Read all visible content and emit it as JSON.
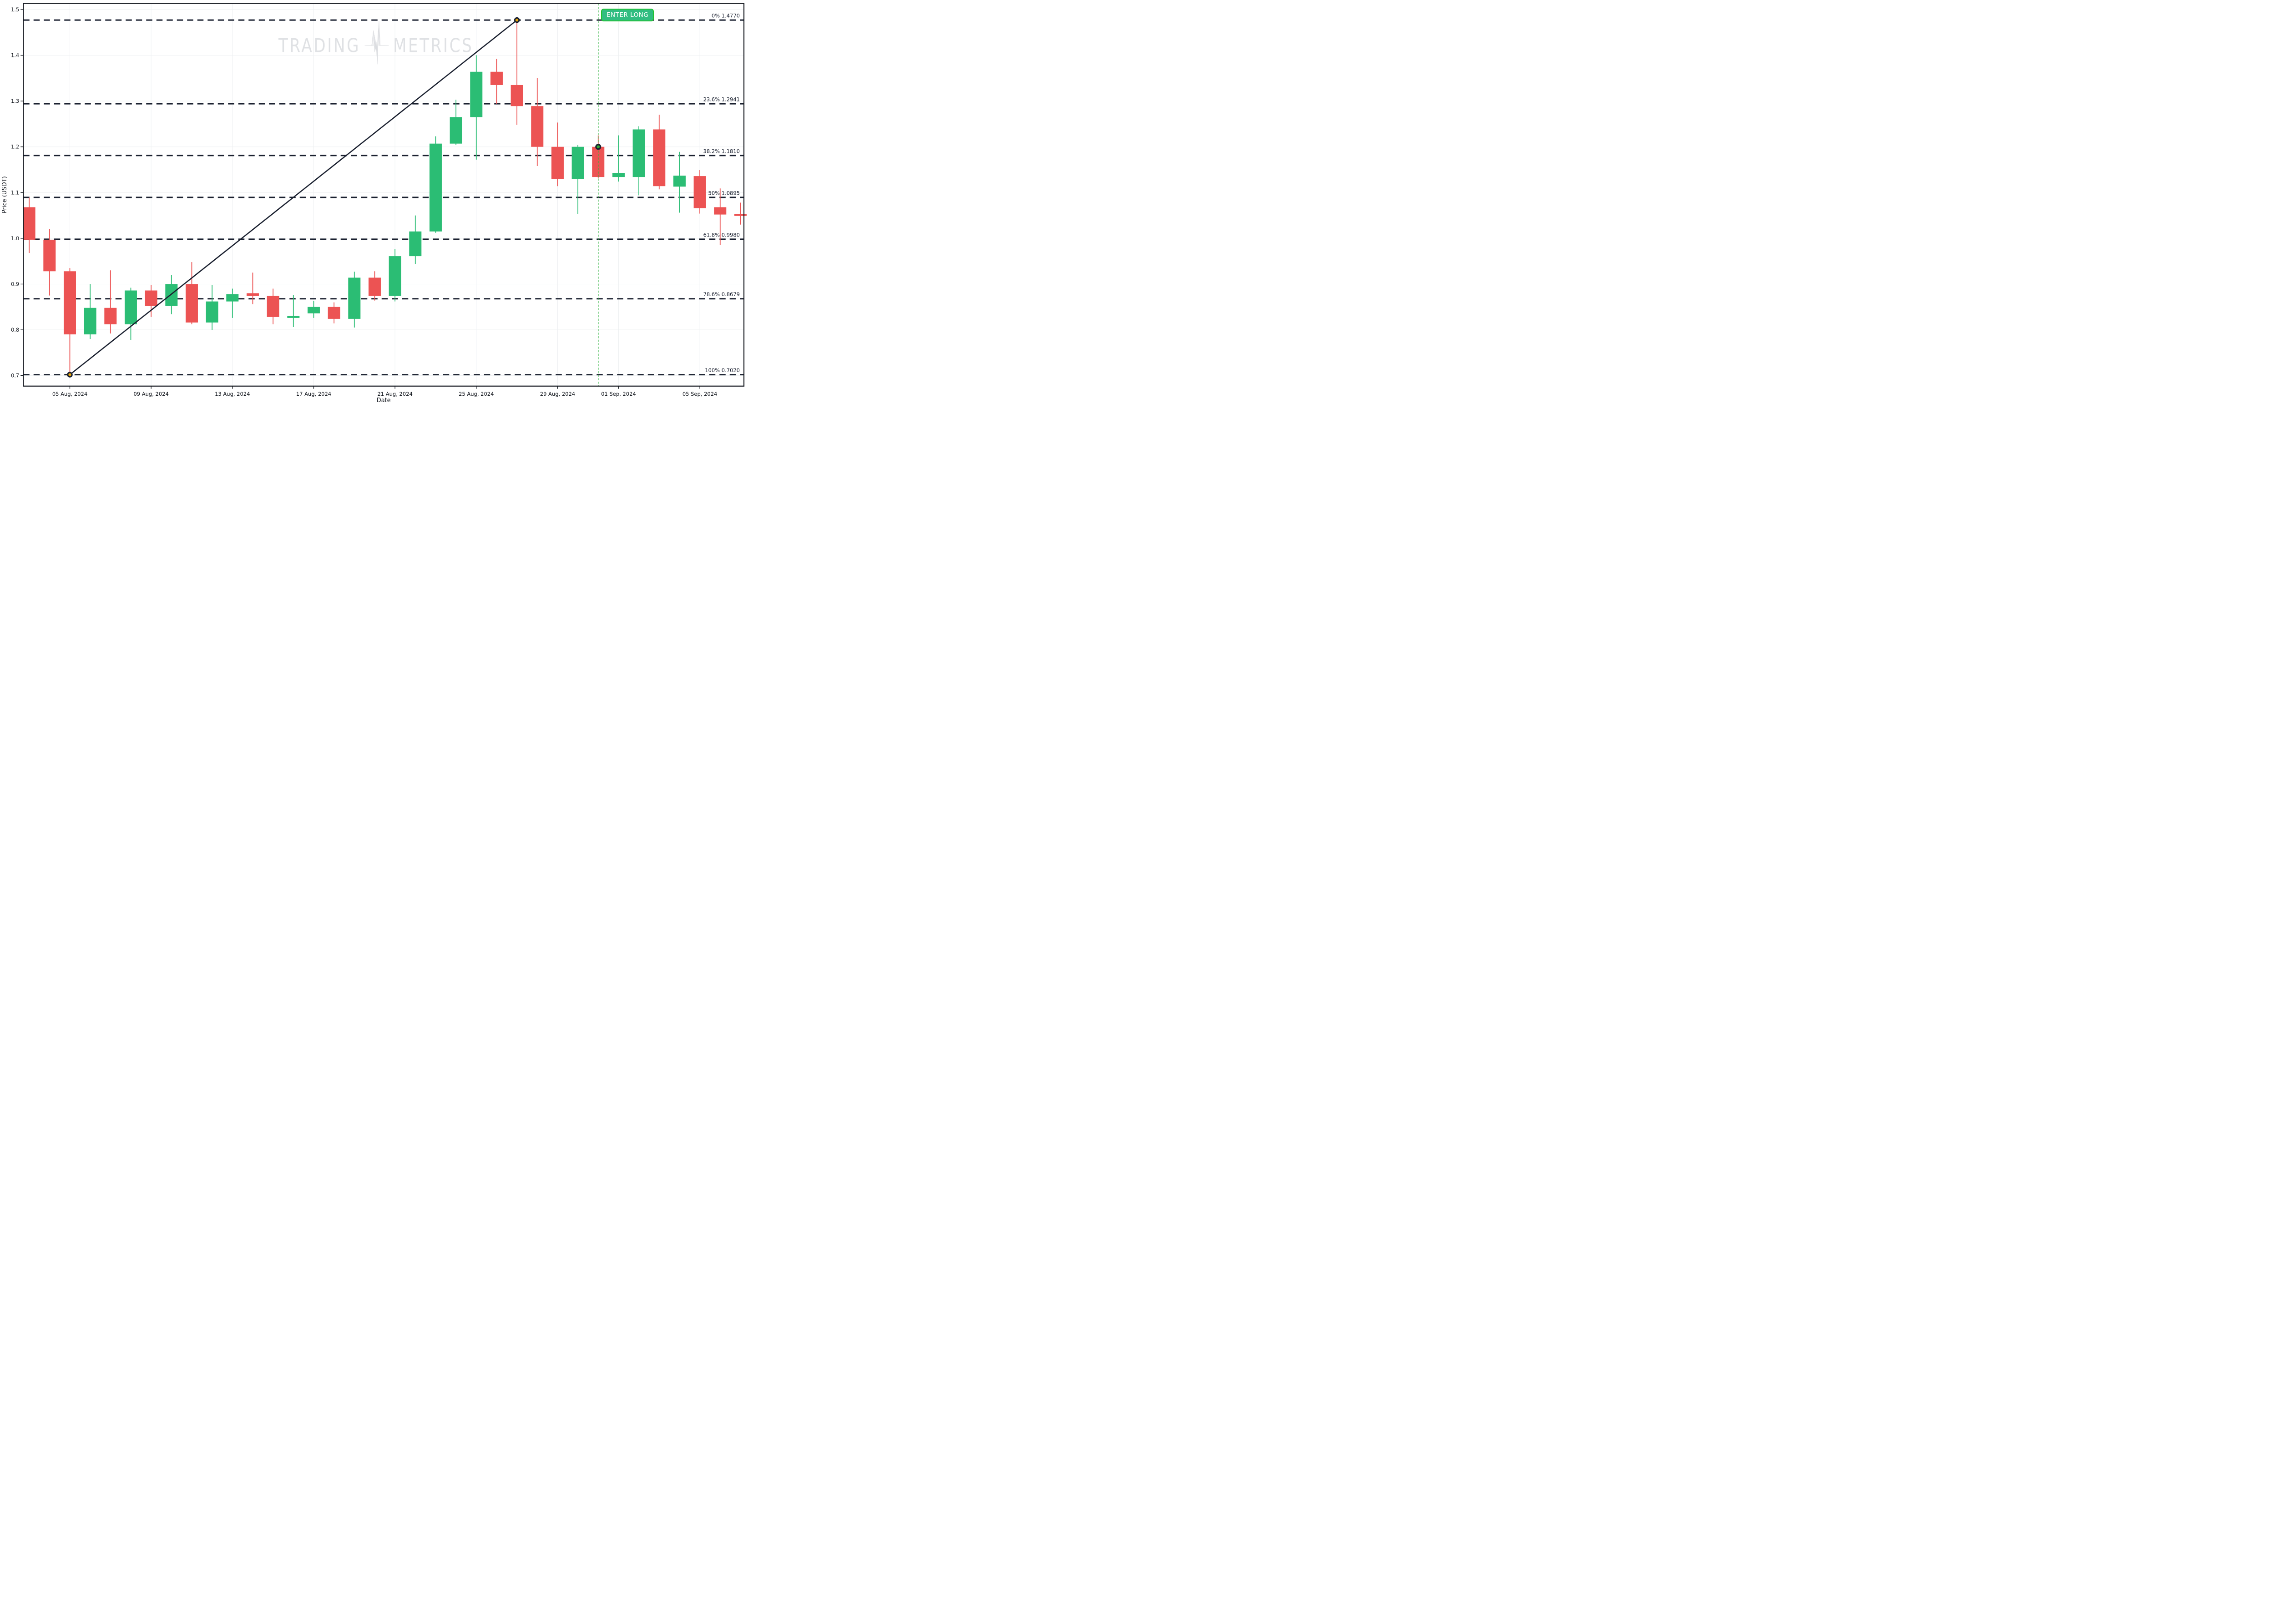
{
  "watermark": {
    "part1": "TRADING",
    "part2": "METRICS"
  },
  "annotation": {
    "label": "ENTER LONG"
  },
  "axes": {
    "x_title": "Date",
    "y_title": "Price (USDT)",
    "y_ticks": [
      "0.7",
      "0.8",
      "0.9",
      "1.0",
      "1.1",
      "1.2",
      "1.3",
      "1.4",
      "1.5"
    ],
    "x_ticks": [
      {
        "index": 2,
        "label": "05 Aug, 2024"
      },
      {
        "index": 6,
        "label": "09 Aug, 2024"
      },
      {
        "index": 10,
        "label": "13 Aug, 2024"
      },
      {
        "index": 14,
        "label": "17 Aug, 2024"
      },
      {
        "index": 18,
        "label": "21 Aug, 2024"
      },
      {
        "index": 22,
        "label": "25 Aug, 2024"
      },
      {
        "index": 26,
        "label": "29 Aug, 2024"
      },
      {
        "index": 29,
        "label": "01 Sep, 2024"
      },
      {
        "index": 33,
        "label": "05 Sep, 2024"
      }
    ]
  },
  "colors": {
    "up": "#2BBD74",
    "down": "#EC5353",
    "fib_line": "#1B2130",
    "trend_line": "#1B2130",
    "entry_line": "#2CB23C",
    "entry_dot": "#2FAB33",
    "swing_marker": "#E8A80C",
    "marker_ring": "#1B2130",
    "badge_fill": "#31BD81",
    "badge_border": "#1FC131",
    "grid": "#EEF0F2",
    "axis": "#14181F",
    "text": "#1B2130",
    "watermark": "#DFE1E4"
  },
  "chart_data": {
    "type": "candlestick",
    "title": "",
    "xlabel": "Date",
    "ylabel": "Price (USDT)",
    "ylim": [
      0.677,
      1.5134
    ],
    "grid": true,
    "fib_levels": [
      {
        "pct": "0%",
        "value": "1.4770",
        "price": 1.477
      },
      {
        "pct": "23.6%",
        "value": "1.2941",
        "price": 1.2941
      },
      {
        "pct": "38.2%",
        "value": "1.1810",
        "price": 1.181
      },
      {
        "pct": "50%",
        "value": "1.0895",
        "price": 1.0895
      },
      {
        "pct": "61.8%",
        "value": "0.9980",
        "price": 0.998
      },
      {
        "pct": "78.6%",
        "value": "0.8679",
        "price": 0.8679
      },
      {
        "pct": "100%",
        "value": "0.7020",
        "price": 0.702
      }
    ],
    "markers": {
      "swing_low": {
        "index": 2,
        "price": 0.702,
        "date": "05 Aug, 2024"
      },
      "swing_high": {
        "index": 24,
        "price": 1.477,
        "date": "27 Aug, 2024"
      },
      "entry": {
        "index": 28,
        "price": 1.2,
        "date": "31 Aug, 2024"
      }
    },
    "candles": [
      {
        "date": "03 Aug, 2024",
        "o": 1.068,
        "h": 1.089,
        "l": 0.968,
        "c": 0.997
      },
      {
        "date": "04 Aug, 2024",
        "o": 0.997,
        "h": 1.02,
        "l": 0.875,
        "c": 0.928
      },
      {
        "date": "05 Aug, 2024",
        "o": 0.928,
        "h": 0.935,
        "l": 0.702,
        "c": 0.79
      },
      {
        "date": "06 Aug, 2024",
        "o": 0.79,
        "h": 0.9,
        "l": 0.78,
        "c": 0.848
      },
      {
        "date": "07 Aug, 2024",
        "o": 0.848,
        "h": 0.93,
        "l": 0.792,
        "c": 0.812
      },
      {
        "date": "08 Aug, 2024",
        "o": 0.812,
        "h": 0.892,
        "l": 0.778,
        "c": 0.886
      },
      {
        "date": "09 Aug, 2024",
        "o": 0.886,
        "h": 0.898,
        "l": 0.828,
        "c": 0.852
      },
      {
        "date": "10 Aug, 2024",
        "o": 0.852,
        "h": 0.92,
        "l": 0.834,
        "c": 0.9
      },
      {
        "date": "11 Aug, 2024",
        "o": 0.9,
        "h": 0.948,
        "l": 0.812,
        "c": 0.816
      },
      {
        "date": "12 Aug, 2024",
        "o": 0.816,
        "h": 0.898,
        "l": 0.8,
        "c": 0.862
      },
      {
        "date": "13 Aug, 2024",
        "o": 0.862,
        "h": 0.89,
        "l": 0.826,
        "c": 0.878
      },
      {
        "date": "14 Aug, 2024",
        "o": 0.88,
        "h": 0.925,
        "l": 0.856,
        "c": 0.874
      },
      {
        "date": "15 Aug, 2024",
        "o": 0.874,
        "h": 0.89,
        "l": 0.812,
        "c": 0.828
      },
      {
        "date": "16 Aug, 2024",
        "o": 0.826,
        "h": 0.876,
        "l": 0.806,
        "c": 0.83
      },
      {
        "date": "17 Aug, 2024",
        "o": 0.836,
        "h": 0.863,
        "l": 0.826,
        "c": 0.85
      },
      {
        "date": "18 Aug, 2024",
        "o": 0.85,
        "h": 0.86,
        "l": 0.814,
        "c": 0.824
      },
      {
        "date": "19 Aug, 2024",
        "o": 0.824,
        "h": 0.927,
        "l": 0.805,
        "c": 0.914
      },
      {
        "date": "20 Aug, 2024",
        "o": 0.914,
        "h": 0.928,
        "l": 0.864,
        "c": 0.874
      },
      {
        "date": "21 Aug, 2024",
        "o": 0.874,
        "h": 0.977,
        "l": 0.862,
        "c": 0.961
      },
      {
        "date": "22 Aug, 2024",
        "o": 0.961,
        "h": 1.05,
        "l": 0.944,
        "c": 1.015
      },
      {
        "date": "23 Aug, 2024",
        "o": 1.015,
        "h": 1.223,
        "l": 1.012,
        "c": 1.207
      },
      {
        "date": "24 Aug, 2024",
        "o": 1.207,
        "h": 1.303,
        "l": 1.204,
        "c": 1.265
      },
      {
        "date": "25 Aug, 2024",
        "o": 1.265,
        "h": 1.4,
        "l": 1.172,
        "c": 1.364
      },
      {
        "date": "26 Aug, 2024",
        "o": 1.364,
        "h": 1.392,
        "l": 1.294,
        "c": 1.335
      },
      {
        "date": "27 Aug, 2024",
        "o": 1.335,
        "h": 1.477,
        "l": 1.248,
        "c": 1.289
      },
      {
        "date": "28 Aug, 2024",
        "o": 1.289,
        "h": 1.35,
        "l": 1.158,
        "c": 1.2
      },
      {
        "date": "29 Aug, 2024",
        "o": 1.2,
        "h": 1.253,
        "l": 1.114,
        "c": 1.13
      },
      {
        "date": "30 Aug, 2024",
        "o": 1.13,
        "h": 1.204,
        "l": 1.053,
        "c": 1.2
      },
      {
        "date": "31 Aug, 2024",
        "o": 1.2,
        "h": 1.225,
        "l": 1.131,
        "c": 1.134
      },
      {
        "date": "01 Sep, 2024",
        "o": 1.134,
        "h": 1.225,
        "l": 1.124,
        "c": 1.143
      },
      {
        "date": "02 Sep, 2024",
        "o": 1.134,
        "h": 1.245,
        "l": 1.094,
        "c": 1.238
      },
      {
        "date": "03 Sep, 2024",
        "o": 1.238,
        "h": 1.27,
        "l": 1.107,
        "c": 1.114
      },
      {
        "date": "04 Sep, 2024",
        "o": 1.113,
        "h": 1.189,
        "l": 1.056,
        "c": 1.137
      },
      {
        "date": "05 Sep, 2024",
        "o": 1.136,
        "h": 1.149,
        "l": 1.054,
        "c": 1.066
      },
      {
        "date": "06 Sep, 2024",
        "o": 1.068,
        "h": 1.109,
        "l": 0.985,
        "c": 1.052
      },
      {
        "date": "07 Sep, 2024",
        "o": 1.053,
        "h": 1.078,
        "l": 1.03,
        "c": 1.049
      }
    ]
  }
}
